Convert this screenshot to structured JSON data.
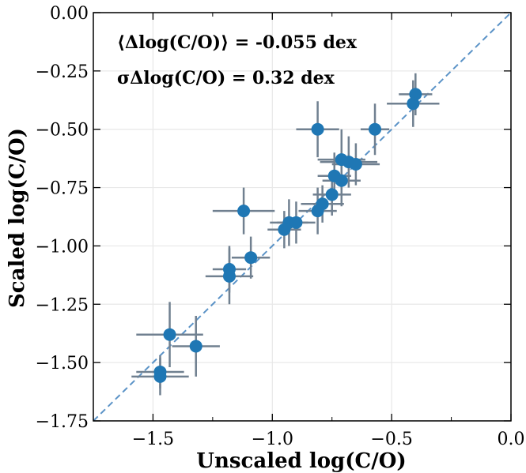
{
  "chart_data": {
    "type": "scatter",
    "xlabel": "Unscaled log(C/O)",
    "ylabel": "Scaled log(C/O)",
    "xlim": [
      -1.75,
      0.0
    ],
    "ylim": [
      -1.75,
      0.0
    ],
    "x_ticks": [
      -1.5,
      -1.0,
      -0.5,
      0.0
    ],
    "x_tick_labels": [
      "−1.5",
      "−1.0",
      "−0.5",
      "0.0"
    ],
    "y_ticks": [
      0.0,
      -0.25,
      -0.5,
      -0.75,
      -1.0,
      -1.25,
      -1.5,
      -1.75
    ],
    "y_tick_labels": [
      "0.00",
      "−0.25",
      "−0.50",
      "−0.75",
      "−1.00",
      "−1.25",
      "−1.50",
      "−1.75"
    ],
    "grid": true,
    "annotations": [
      "⟨Δlog(C/O)⟩ = -0.055 dex",
      "σΔlog(C/O) = 0.32 dex"
    ],
    "one_to_one_line": true,
    "colors": {
      "points": "#1f77b4",
      "errorbars": "#708090",
      "diagonal": "#5b93c7",
      "grid": "#e8e8e8"
    },
    "points": [
      {
        "x": -0.4,
        "y": -0.35,
        "xerr": 0.07,
        "yerr": 0.09
      },
      {
        "x": -0.41,
        "y": -0.39,
        "xerr": 0.11,
        "yerr": 0.1
      },
      {
        "x": -0.81,
        "y": -0.5,
        "xerr": 0.09,
        "yerr": 0.12
      },
      {
        "x": -0.57,
        "y": -0.5,
        "xerr": 0.06,
        "yerr": 0.11
      },
      {
        "x": -0.71,
        "y": -0.63,
        "xerr": 0.1,
        "yerr": 0.13
      },
      {
        "x": -0.68,
        "y": -0.64,
        "xerr": 0.12,
        "yerr": 0.11
      },
      {
        "x": -0.65,
        "y": -0.65,
        "xerr": 0.1,
        "yerr": 0.09
      },
      {
        "x": -0.74,
        "y": -0.7,
        "xerr": 0.07,
        "yerr": 0.1
      },
      {
        "x": -0.71,
        "y": -0.72,
        "xerr": 0.08,
        "yerr": 0.11
      },
      {
        "x": -0.75,
        "y": -0.78,
        "xerr": 0.08,
        "yerr": 0.09
      },
      {
        "x": -0.79,
        "y": -0.82,
        "xerr": 0.09,
        "yerr": 0.08
      },
      {
        "x": -0.81,
        "y": -0.85,
        "xerr": 0.08,
        "yerr": 0.1
      },
      {
        "x": -1.12,
        "y": -0.85,
        "xerr": 0.13,
        "yerr": 0.1
      },
      {
        "x": -0.93,
        "y": -0.9,
        "xerr": 0.08,
        "yerr": 0.1
      },
      {
        "x": -0.9,
        "y": -0.9,
        "xerr": 0.08,
        "yerr": 0.09
      },
      {
        "x": -0.95,
        "y": -0.93,
        "xerr": 0.07,
        "yerr": 0.08
      },
      {
        "x": -1.09,
        "y": -1.05,
        "xerr": 0.08,
        "yerr": 0.09
      },
      {
        "x": -1.18,
        "y": -1.1,
        "xerr": 0.07,
        "yerr": 0.1
      },
      {
        "x": -1.18,
        "y": -1.13,
        "xerr": 0.1,
        "yerr": 0.12
      },
      {
        "x": -1.43,
        "y": -1.38,
        "xerr": 0.14,
        "yerr": 0.14
      },
      {
        "x": -1.32,
        "y": -1.43,
        "xerr": 0.1,
        "yerr": 0.13
      },
      {
        "x": -1.47,
        "y": -1.54,
        "xerr": 0.1,
        "yerr": 0.07
      },
      {
        "x": -1.47,
        "y": -1.56,
        "xerr": 0.12,
        "yerr": 0.08
      }
    ]
  }
}
